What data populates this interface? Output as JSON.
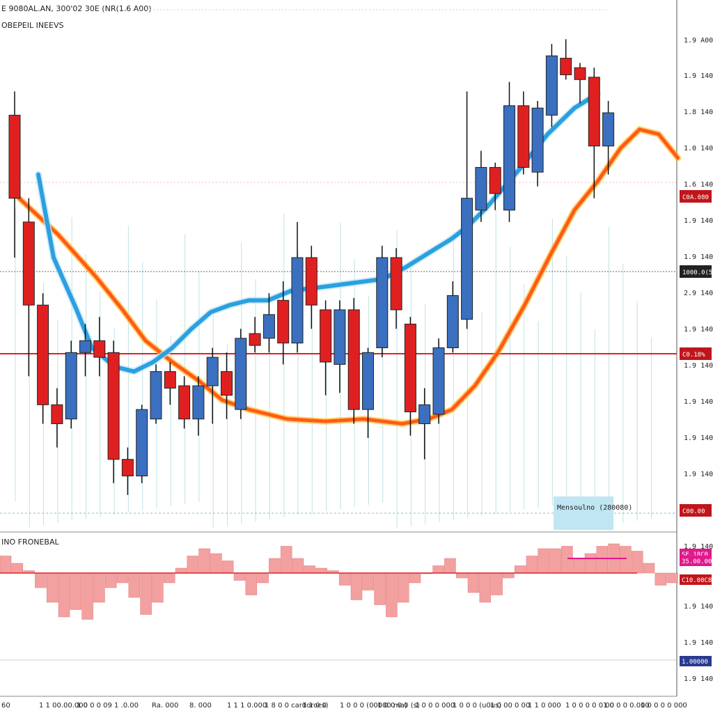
{
  "header": {
    "symbol_line": "E 9080AL.AN, 300'02 30E (NR(1.6 A00)",
    "indicator_label": "OBEPEIL INEEVS"
  },
  "sub_panel": {
    "label": "INO FRONEBAL"
  },
  "badges": {
    "info_box": "Mensoulno (280080)"
  },
  "colors": {
    "bull": "#3b6fbf",
    "bear": "#e02020",
    "ma_fast": "#2aa0e0",
    "ma_slow": "#ff5a1a",
    "tag_red": "#c0161b",
    "tag_pink": "#e0188c",
    "tag_navy": "#2a3a8f",
    "hist": "#f3a0a0"
  },
  "chart_data": {
    "type": "candlestick",
    "price_axis_labels": [
      "1.9 A00",
      "1.9 1400",
      "1.8 1400",
      "1.0 1400",
      "1.6 1400",
      "1.9 1400",
      "1.9 1400",
      "2.9 1400",
      "1.9 1400",
      "1.9 1400",
      "1.9 1400",
      "1.9 1400",
      "1.9 1400"
    ],
    "price_tags": [
      "C0A.080",
      "1000.0(59)",
      "C0.18%",
      "C00.00"
    ],
    "sub_axis_labels": [
      "1.9 1400",
      "1.9 1400",
      "1.9 1400",
      "1.9 1400",
      "1.8 1400"
    ],
    "sub_tags": [
      "SE.18C0",
      "35.00.00",
      "C10.00C8",
      "1.00000"
    ],
    "x_labels": [
      "60",
      "1 1 00.00.000",
      "1 0 0 0 09",
      "1 .0.00",
      "Ra. 000",
      "8. 000",
      "1 1 1 0.000",
      "1 8 0 0 cardoroes)",
      "1 1 0 0",
      "1 0 0 0 (00000 ma)",
      "1 0 0 0 0 (s)",
      "1 0 0 0 000",
      "1 0 0 0 (u0us)",
      "1 0 00 0 00",
      "1 1 0 000",
      "1 0 0 0 0 0 00",
      "1 0 0 0 0.000",
      "1 0 0 0 0 000"
    ],
    "candles": [
      [
        1.96,
        1.925,
        1.97,
        1.9,
        "bear"
      ],
      [
        1.915,
        1.88,
        1.925,
        1.85,
        "bear"
      ],
      [
        1.88,
        1.838,
        1.885,
        1.83,
        "bear"
      ],
      [
        1.838,
        1.83,
        1.845,
        1.82,
        "bear"
      ],
      [
        1.832,
        1.86,
        1.865,
        1.828,
        "bull"
      ],
      [
        1.86,
        1.865,
        1.872,
        1.85,
        "bull"
      ],
      [
        1.865,
        1.858,
        1.875,
        1.85,
        "bear"
      ],
      [
        1.86,
        1.815,
        1.865,
        1.805,
        "bear"
      ],
      [
        1.815,
        1.808,
        1.82,
        1.8,
        "bear"
      ],
      [
        1.808,
        1.836,
        1.838,
        1.805,
        "bull"
      ],
      [
        1.832,
        1.852,
        1.855,
        1.83,
        "bull"
      ],
      [
        1.852,
        1.845,
        1.856,
        1.838,
        "bear"
      ],
      [
        1.846,
        1.832,
        1.85,
        1.828,
        "bear"
      ],
      [
        1.832,
        1.846,
        1.85,
        1.825,
        "bull"
      ],
      [
        1.846,
        1.858,
        1.862,
        1.83,
        "bull"
      ],
      [
        1.852,
        1.842,
        1.86,
        1.832,
        "bear"
      ],
      [
        1.836,
        1.866,
        1.87,
        1.832,
        "bull"
      ],
      [
        1.868,
        1.863,
        1.875,
        1.86,
        "bear"
      ],
      [
        1.866,
        1.876,
        1.885,
        1.86,
        "bull"
      ],
      [
        1.882,
        1.864,
        1.89,
        1.855,
        "bear"
      ],
      [
        1.864,
        1.9,
        1.915,
        1.86,
        "bull"
      ],
      [
        1.9,
        1.88,
        1.905,
        1.87,
        "bear"
      ],
      [
        1.878,
        1.856,
        1.882,
        1.842,
        "bear"
      ],
      [
        1.855,
        1.878,
        1.882,
        1.843,
        "bull"
      ],
      [
        1.878,
        1.836,
        1.883,
        1.83,
        "bear"
      ],
      [
        1.836,
        1.86,
        1.862,
        1.824,
        "bull"
      ],
      [
        1.862,
        1.9,
        1.905,
        1.858,
        "bull"
      ],
      [
        1.9,
        1.878,
        1.904,
        1.87,
        "bear"
      ],
      [
        1.872,
        1.835,
        1.875,
        1.825,
        "bear"
      ],
      [
        1.83,
        1.838,
        1.845,
        1.815,
        "bull"
      ],
      [
        1.834,
        1.862,
        1.866,
        1.83,
        "bull"
      ],
      [
        1.862,
        1.884,
        1.89,
        1.86,
        "bull"
      ],
      [
        1.874,
        1.925,
        1.97,
        1.87,
        "bull"
      ],
      [
        1.92,
        1.938,
        1.945,
        1.915,
        "bull"
      ],
      [
        1.938,
        1.927,
        1.94,
        1.92,
        "bear"
      ],
      [
        1.92,
        1.964,
        1.974,
        1.915,
        "bull"
      ],
      [
        1.964,
        1.938,
        1.97,
        1.935,
        "bear"
      ],
      [
        1.936,
        1.963,
        1.966,
        1.93,
        "bull"
      ],
      [
        1.96,
        1.985,
        1.99,
        1.955,
        "bull"
      ],
      [
        1.984,
        1.977,
        1.992,
        1.975,
        "bear"
      ],
      [
        1.98,
        1.975,
        1.982,
        1.965,
        "bear"
      ],
      [
        1.976,
        1.947,
        1.98,
        1.925,
        "bear"
      ],
      [
        1.947,
        1.961,
        1.966,
        1.935,
        "bull"
      ]
    ],
    "ma_fast": [
      [
        10,
        1.935
      ],
      [
        14,
        1.9
      ],
      [
        20,
        1.878
      ],
      [
        24,
        1.862
      ],
      [
        30,
        1.854
      ],
      [
        35,
        1.852
      ],
      [
        40,
        1.856
      ],
      [
        45,
        1.862
      ],
      [
        50,
        1.87
      ],
      [
        55,
        1.877
      ],
      [
        60,
        1.88
      ],
      [
        65,
        1.882
      ],
      [
        70,
        1.882
      ],
      [
        76,
        1.886
      ],
      [
        86,
        1.888
      ],
      [
        100,
        1.891
      ],
      [
        106,
        1.896
      ],
      [
        113,
        1.903
      ],
      [
        118,
        1.908
      ],
      [
        122,
        1.913
      ],
      [
        127,
        1.921
      ],
      [
        135,
        1.936
      ],
      [
        143,
        1.952
      ],
      [
        150,
        1.963
      ],
      [
        156,
        1.969
      ]
    ],
    "ma_slow": [
      [
        5,
        1.925
      ],
      [
        15,
        1.91
      ],
      [
        25,
        1.892
      ],
      [
        32,
        1.878
      ],
      [
        38,
        1.865
      ],
      [
        45,
        1.856
      ],
      [
        52,
        1.848
      ],
      [
        58,
        1.84
      ],
      [
        65,
        1.836
      ],
      [
        75,
        1.832
      ],
      [
        85,
        1.831
      ],
      [
        95,
        1.832
      ],
      [
        105,
        1.83
      ],
      [
        112,
        1.832
      ],
      [
        118,
        1.836
      ],
      [
        124,
        1.846
      ],
      [
        130,
        1.86
      ],
      [
        137,
        1.88
      ],
      [
        144,
        1.902
      ],
      [
        150,
        1.92
      ],
      [
        156,
        1.932
      ],
      [
        162,
        1.946
      ],
      [
        167,
        1.954
      ],
      [
        172,
        1.952
      ],
      [
        177,
        1.942
      ]
    ],
    "histogram": [
      0.35,
      0.2,
      0.05,
      -0.3,
      -0.6,
      -0.9,
      -0.75,
      -0.95,
      -0.6,
      -0.3,
      -0.2,
      -0.5,
      -0.85,
      -0.6,
      -0.2,
      0.1,
      0.35,
      0.5,
      0.4,
      0.25,
      -0.15,
      -0.45,
      -0.2,
      0.3,
      0.55,
      0.3,
      0.15,
      0.1,
      0.05,
      -0.25,
      -0.55,
      -0.35,
      -0.65,
      -0.9,
      -0.6,
      -0.2,
      0.0,
      0.15,
      0.3,
      -0.1,
      -0.4,
      -0.6,
      -0.45,
      -0.1,
      0.15,
      0.35,
      0.5,
      0.5,
      0.55,
      0.3,
      0.4,
      0.55,
      0.6,
      0.55,
      0.45,
      0.2,
      -0.25,
      -0.2
    ]
  }
}
